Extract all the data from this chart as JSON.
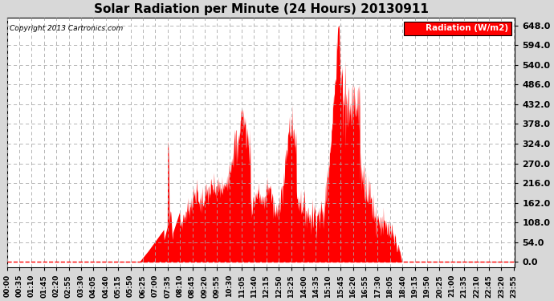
{
  "title": "Solar Radiation per Minute (24 Hours) 20130911",
  "copyright_text": "Copyright 2013 Cartronics.com",
  "legend_label": "Radiation (W/m2)",
  "background_color": "#d8d8d8",
  "plot_bg_color": "#ffffff",
  "fill_color": "#ff0000",
  "grid_color": "#aaaaaa",
  "dashed_line_color": "#ff0000",
  "legend_bg": "#ff0000",
  "legend_text_color": "#ffffff",
  "ytick_values": [
    0.0,
    54.0,
    108.0,
    162.0,
    216.0,
    270.0,
    324.0,
    378.0,
    432.0,
    486.0,
    540.0,
    594.0,
    648.0
  ],
  "ymax": 670,
  "ymin": -15,
  "total_minutes": 1440,
  "sunrise_minute": 375,
  "sunset_minute": 1120,
  "peak_value": 648
}
